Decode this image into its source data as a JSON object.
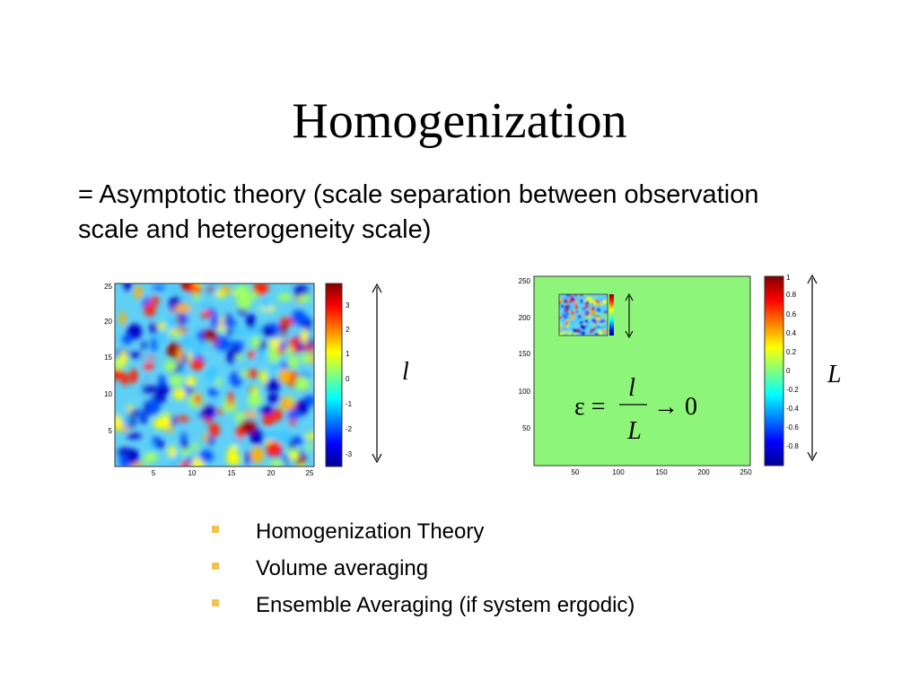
{
  "slide": {
    "title": "Homogenization",
    "subtitle": "= Asymptotic theory (scale separation between observation scale and heterogeneity scale)"
  },
  "left_figure": {
    "x_ticks": [
      "5",
      "10",
      "15",
      "20",
      "25"
    ],
    "y_ticks": [
      "25",
      "20",
      "15",
      "10",
      "5"
    ],
    "colorbar_ticks": [
      "3",
      "2",
      "1",
      "0",
      "-1",
      "-2",
      "-3"
    ],
    "scale_symbol": "l"
  },
  "right_figure": {
    "x_ticks": [
      "50",
      "100",
      "150",
      "200",
      "250"
    ],
    "y_ticks": [
      "250",
      "200",
      "150",
      "100",
      "50"
    ],
    "colorbar_ticks": [
      "1",
      "0.8",
      "0.6",
      "0.4",
      "0.2",
      "0",
      "-0.2",
      "-0.4",
      "-0.6",
      "-0.8"
    ],
    "scale_symbol": "L",
    "field_color": "#8ef57b",
    "equation": {
      "lhs": "ε =",
      "numerator": "l",
      "denominator": "L",
      "rhs": "→ 0"
    }
  },
  "bullets": [
    "Homogenization Theory",
    "Volume averaging",
    "Ensemble Averaging (if system ergodic)"
  ],
  "colors": {
    "bullet": "#f2c14e",
    "field_bg": "#8ef57b"
  }
}
